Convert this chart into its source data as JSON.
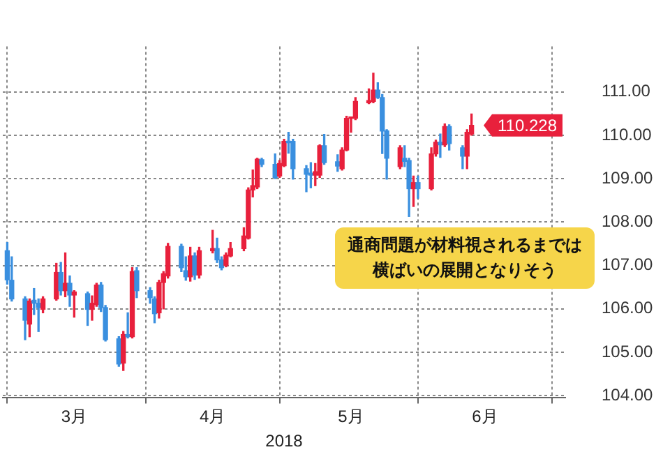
{
  "chart_data": {
    "type": "candlestick",
    "xlabel": "2018",
    "x": [
      "2018-03-01",
      "2018-03-02",
      "2018-03-05",
      "2018-03-06",
      "2018-03-07",
      "2018-03-08",
      "2018-03-09",
      "2018-03-12",
      "2018-03-13",
      "2018-03-14",
      "2018-03-15",
      "2018-03-16",
      "2018-03-19",
      "2018-03-20",
      "2018-03-21",
      "2018-03-22",
      "2018-03-23",
      "2018-03-26",
      "2018-03-27",
      "2018-03-28",
      "2018-03-29",
      "2018-03-30",
      "2018-04-02",
      "2018-04-03",
      "2018-04-04",
      "2018-04-05",
      "2018-04-06",
      "2018-04-09",
      "2018-04-10",
      "2018-04-11",
      "2018-04-12",
      "2018-04-13",
      "2018-04-16",
      "2018-04-17",
      "2018-04-18",
      "2018-04-19",
      "2018-04-20",
      "2018-04-23",
      "2018-04-24",
      "2018-04-25",
      "2018-04-26",
      "2018-04-27",
      "2018-04-30",
      "2018-05-01",
      "2018-05-02",
      "2018-05-03",
      "2018-05-04",
      "2018-05-07",
      "2018-05-08",
      "2018-05-09",
      "2018-05-10",
      "2018-05-11",
      "2018-05-14",
      "2018-05-15",
      "2018-05-16",
      "2018-05-17",
      "2018-05-18",
      "2018-05-21",
      "2018-05-22",
      "2018-05-23",
      "2018-05-24",
      "2018-05-25",
      "2018-05-28",
      "2018-05-29",
      "2018-05-30",
      "2018-05-31",
      "2018-06-01",
      "2018-06-04",
      "2018-06-05",
      "2018-06-06",
      "2018-06-07",
      "2018-06-08",
      "2018-06-11",
      "2018-06-12",
      "2018-06-13"
    ],
    "ohlc": [
      [
        107.34,
        107.53,
        106.57,
        106.67
      ],
      [
        106.66,
        107.2,
        106.18,
        106.23
      ],
      [
        106.23,
        106.28,
        105.29,
        105.74
      ],
      [
        105.65,
        106.23,
        105.36,
        106.18
      ],
      [
        106.2,
        106.47,
        105.87,
        106.13
      ],
      [
        106.13,
        106.23,
        105.48,
        106.03
      ],
      [
        105.99,
        106.28,
        105.91,
        106.23
      ],
      [
        106.23,
        107.05,
        106.2,
        106.84
      ],
      [
        106.84,
        107.07,
        106.32,
        106.42
      ],
      [
        106.42,
        107.29,
        106.28,
        106.59
      ],
      [
        106.59,
        106.76,
        106.06,
        106.32
      ],
      [
        106.32,
        106.42,
        105.81,
        106.39
      ],
      [
        106.35,
        106.39,
        105.62,
        105.99
      ],
      [
        105.99,
        106.3,
        105.74,
        106.13
      ],
      [
        106.1,
        106.59,
        106.06,
        106.55
      ],
      [
        106.55,
        106.61,
        105.94,
        106.03
      ],
      [
        106.03,
        106.08,
        105.26,
        105.29
      ],
      [
        105.31,
        105.36,
        104.68,
        104.73
      ],
      [
        104.75,
        105.48,
        104.58,
        105.41
      ],
      [
        105.41,
        105.91,
        105.33,
        105.36
      ],
      [
        105.36,
        106.95,
        105.33,
        106.86
      ],
      [
        106.88,
        106.95,
        106.26,
        106.42
      ],
      [
        106.42,
        106.49,
        106.13,
        106.26
      ],
      [
        106.23,
        106.28,
        105.68,
        105.89
      ],
      [
        105.91,
        106.66,
        105.79,
        106.61
      ],
      [
        106.61,
        106.86,
        106.0,
        106.81
      ],
      [
        106.76,
        107.51,
        106.71,
        107.44
      ],
      [
        107.44,
        107.49,
        106.86,
        106.95
      ],
      [
        106.88,
        107.2,
        106.66,
        106.74
      ],
      [
        106.74,
        107.42,
        106.64,
        107.22
      ],
      [
        107.22,
        107.29,
        106.68,
        106.78
      ],
      [
        106.78,
        107.42,
        106.71,
        107.34
      ],
      [
        107.34,
        107.81,
        107.29,
        107.39
      ],
      [
        107.39,
        107.63,
        107.07,
        107.13
      ],
      [
        107.13,
        107.2,
        106.9,
        106.95
      ],
      [
        107.0,
        107.29,
        106.97,
        107.24
      ],
      [
        107.22,
        107.53,
        107.2,
        107.39
      ],
      [
        107.39,
        107.87,
        107.34,
        107.68
      ],
      [
        107.63,
        108.79,
        107.61,
        108.74
      ],
      [
        108.74,
        109.2,
        108.58,
        108.84
      ],
      [
        108.81,
        109.47,
        108.77,
        109.45
      ],
      [
        109.44,
        109.47,
        109.28,
        109.33
      ],
      [
        109.33,
        109.57,
        109.0,
        109.03
      ],
      [
        109.06,
        109.42,
        109.03,
        109.35
      ],
      [
        109.3,
        109.91,
        109.28,
        109.86
      ],
      [
        109.86,
        110.07,
        109.59,
        109.83
      ],
      [
        109.86,
        109.91,
        108.99,
        109.23
      ],
      [
        109.23,
        109.3,
        108.7,
        109.1
      ],
      [
        109.13,
        109.37,
        108.79,
        109.08
      ],
      [
        109.08,
        109.35,
        108.84,
        109.16
      ],
      [
        109.08,
        109.78,
        109.03,
        109.76
      ],
      [
        109.76,
        110.02,
        109.33,
        109.37
      ],
      [
        109.39,
        109.55,
        109.17,
        109.29
      ],
      [
        109.23,
        109.71,
        109.2,
        109.66
      ],
      [
        109.66,
        110.44,
        109.64,
        110.39
      ],
      [
        110.39,
        110.42,
        110.07,
        110.42
      ],
      [
        110.39,
        110.87,
        110.36,
        110.78
      ],
      [
        110.75,
        111.07,
        110.73,
        110.8
      ],
      [
        110.78,
        111.43,
        110.75,
        111.04
      ],
      [
        111.04,
        111.21,
        110.85,
        110.87
      ],
      [
        110.87,
        110.94,
        109.58,
        110.1
      ],
      [
        110.1,
        110.13,
        108.99,
        109.47
      ],
      [
        109.28,
        109.76,
        109.23,
        109.71
      ],
      [
        109.47,
        109.76,
        109.28,
        109.4
      ],
      [
        109.42,
        109.47,
        108.13,
        108.77
      ],
      [
        108.77,
        109.06,
        108.36,
        108.91
      ],
      [
        108.91,
        109.06,
        108.55,
        108.77
      ],
      [
        108.77,
        109.71,
        108.74,
        109.57
      ],
      [
        109.57,
        109.89,
        109.52,
        109.84
      ],
      [
        109.84,
        110.03,
        109.49,
        109.78
      ],
      [
        109.78,
        110.26,
        109.74,
        110.2
      ],
      [
        110.2,
        110.24,
        109.66,
        109.81
      ],
      [
        109.71,
        109.76,
        109.23,
        109.52
      ],
      [
        109.52,
        110.13,
        109.23,
        110.07
      ],
      [
        110.03,
        110.49,
        110.0,
        110.228
      ]
    ],
    "colors": [
      "#3a8fdf",
      "#3a8fdf",
      "#3a8fdf",
      "#e8203c",
      "#3a8fdf",
      "#3a8fdf",
      "#e8203c",
      "#e8203c",
      "#3a8fdf",
      "#e8203c",
      "#3a8fdf",
      "#e8203c",
      "#3a8fdf",
      "#e8203c",
      "#e8203c",
      "#3a8fdf",
      "#3a8fdf",
      "#3a8fdf",
      "#e8203c",
      "#3a8fdf",
      "#e8203c",
      "#3a8fdf",
      "#3a8fdf",
      "#3a8fdf",
      "#e8203c",
      "#e8203c",
      "#e8203c",
      "#3a8fdf",
      "#3a8fdf",
      "#e8203c",
      "#3a8fdf",
      "#e8203c",
      "#e8203c",
      "#3a8fdf",
      "#3a8fdf",
      "#e8203c",
      "#e8203c",
      "#e8203c",
      "#e8203c",
      "#e8203c",
      "#e8203c",
      "#3a8fdf",
      "#3a8fdf",
      "#e8203c",
      "#e8203c",
      "#3a8fdf",
      "#3a8fdf",
      "#3a8fdf",
      "#3a8fdf",
      "#e8203c",
      "#e8203c",
      "#3a8fdf",
      "#3a8fdf",
      "#e8203c",
      "#e8203c",
      "#e8203c",
      "#e8203c",
      "#e8203c",
      "#e8203c",
      "#3a8fdf",
      "#3a8fdf",
      "#3a8fdf",
      "#e8203c",
      "#3a8fdf",
      "#3a8fdf",
      "#e8203c",
      "#3a8fdf",
      "#e8203c",
      "#e8203c",
      "#3a8fdf",
      "#e8203c",
      "#3a8fdf",
      "#3a8fdf",
      "#e8203c",
      "#e8203c"
    ],
    "xlim": [
      "2018-02-28",
      "2018-07-04"
    ],
    "xticks": [
      {
        "value": "2018-03-01",
        "label": null
      },
      {
        "value": "2018-03-16",
        "label": "3月"
      },
      {
        "value": "2018-04-01",
        "label": null
      },
      {
        "value": "2018-04-16",
        "label": "4月"
      },
      {
        "value": "2018-05-01",
        "label": null
      },
      {
        "value": "2018-05-17",
        "label": "5月"
      },
      {
        "value": "2018-06-01",
        "label": null
      },
      {
        "value": "2018-06-16",
        "label": "6月"
      },
      {
        "value": "2018-07-01",
        "label": null
      }
    ],
    "ylim": [
      103.95,
      112.05
    ],
    "yticks": [
      {
        "value": 104,
        "label": "104.00"
      },
      {
        "value": 105,
        "label": "105.00"
      },
      {
        "value": 106,
        "label": "106.00"
      },
      {
        "value": 107,
        "label": "107.00"
      },
      {
        "value": 108,
        "label": "108.00"
      },
      {
        "value": 109,
        "label": "109.00"
      },
      {
        "value": 110,
        "label": "110.00"
      },
      {
        "value": 111,
        "label": "111.00"
      }
    ],
    "grid": true,
    "annotations": [
      "110.228",
      "通商問題が材料視されるまでは横ばいの展開となりそう"
    ]
  }
}
